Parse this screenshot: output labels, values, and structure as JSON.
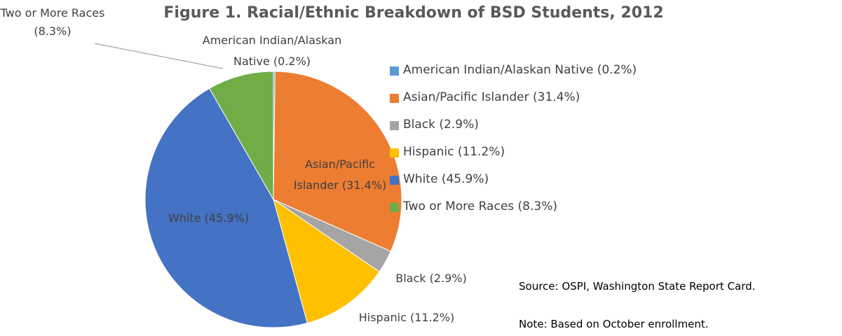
{
  "chart_data": {
    "type": "pie",
    "title": "Figure 1. Racial/Ethnic Breakdown of BSD Students, 2012",
    "categories": [
      "American Indian/Alaskan Native (0.2%)",
      "Asian/Pacific Islander (31.4%)",
      "Black (2.9%)",
      "Hispanic (11.2%)",
      "White (45.9%)",
      "Two or More Races (8.3%)"
    ],
    "values": [
      0.2,
      31.4,
      2.9,
      11.2,
      45.9,
      8.3
    ],
    "colors": [
      "#5b9bd5",
      "#ed7d31",
      "#a5a5a5",
      "#ffc000",
      "#4472c4",
      "#70ad47"
    ],
    "legend": "right",
    "annotations": [
      "Source: OSPI, Washington State Report Card.",
      "Note: Based on October enrollment."
    ]
  }
}
